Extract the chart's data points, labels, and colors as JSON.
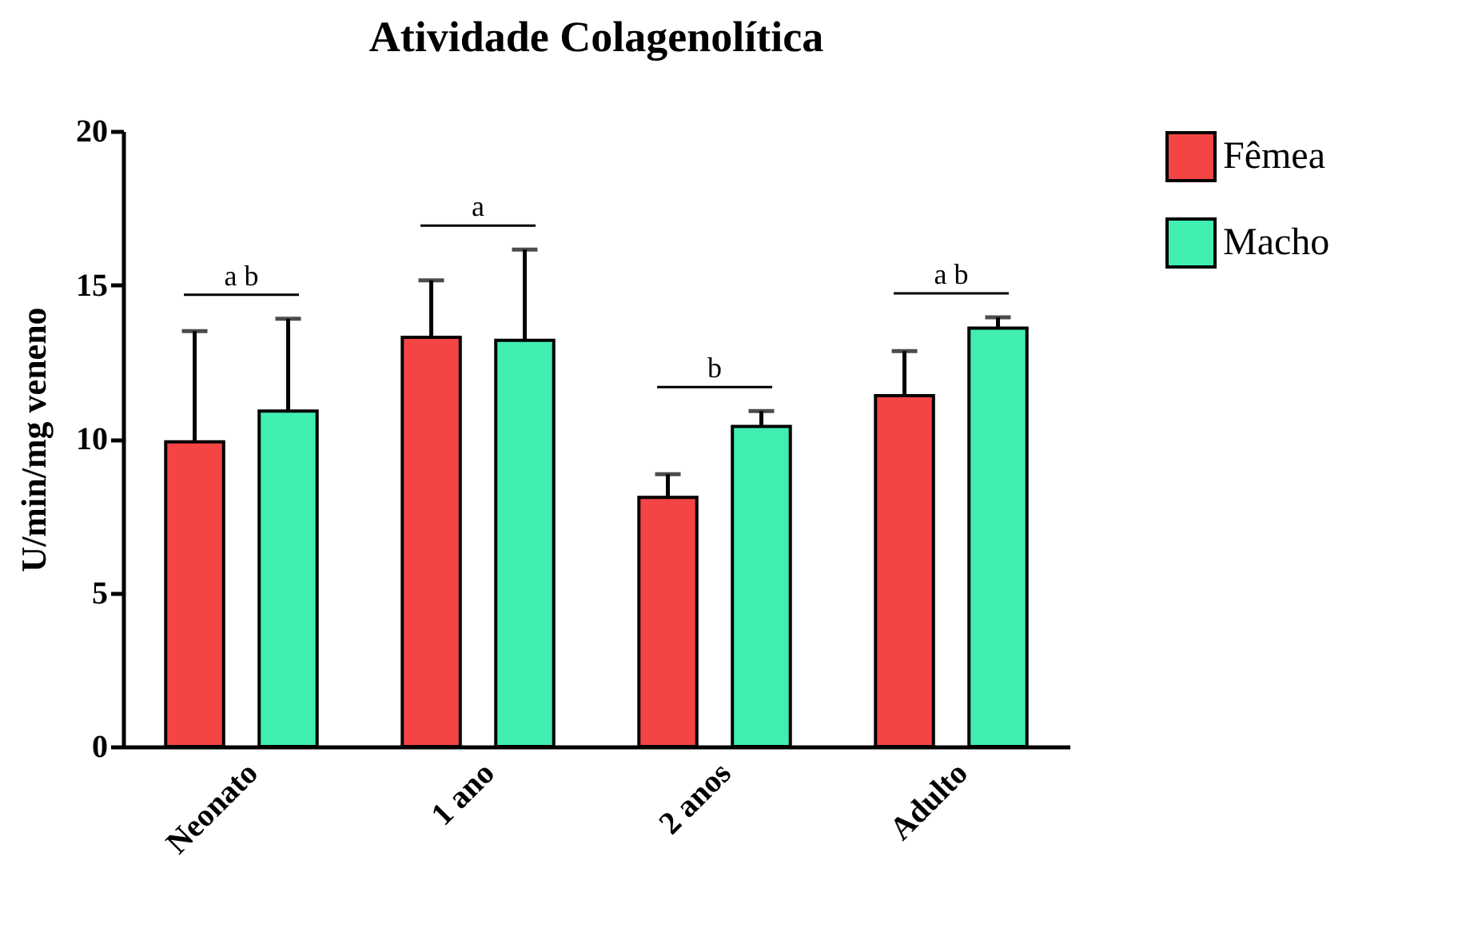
{
  "chart_data": {
    "type": "bar",
    "title": "Atividade Colagenolítica",
    "ylabel": "U/min/mg veneno",
    "categories": [
      "Neonato",
      "1 ano",
      "2 anos",
      "Adulto"
    ],
    "series": [
      {
        "name": "Fêmea",
        "color": "#f44444",
        "values": [
          9.9,
          13.3,
          8.1,
          11.4
        ],
        "errors": [
          3.6,
          1.85,
          0.75,
          1.45
        ]
      },
      {
        "name": "Macho",
        "color": "#40eeb0",
        "values": [
          10.9,
          13.2,
          10.4,
          13.6
        ],
        "errors": [
          3.0,
          2.95,
          0.5,
          0.35
        ]
      }
    ],
    "ylim": [
      0,
      20
    ],
    "yticks": [
      0,
      5,
      10,
      15,
      20
    ],
    "grid": false,
    "legend": "top right",
    "annotations": [
      "a b",
      "a",
      "b",
      "a b"
    ]
  }
}
